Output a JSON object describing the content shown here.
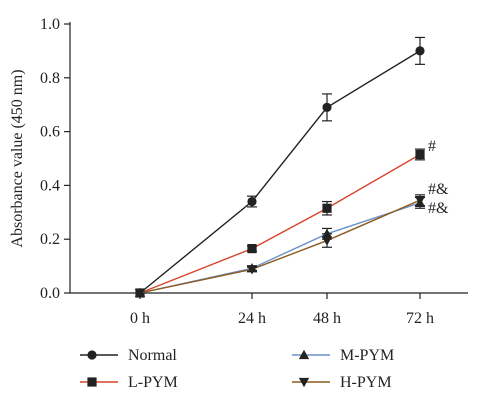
{
  "chart_data": {
    "type": "line",
    "title": "",
    "xlabel": "",
    "ylabel": "Absorbance value (450 nm)",
    "categories": [
      "0 h",
      "24 h",
      "48 h",
      "72 h"
    ],
    "ylim": [
      0,
      1.0
    ],
    "yticks": [
      "0.0",
      "0.2",
      "0.4",
      "0.6",
      "0.8",
      "1.0"
    ],
    "ytick_values": [
      0,
      0.2,
      0.4,
      0.6,
      0.8,
      1.0
    ],
    "grid": false,
    "legend_position": "bottom",
    "series": [
      {
        "name": "Normal",
        "color": "#222222",
        "marker": "circle",
        "values": [
          0.0,
          0.34,
          0.69,
          0.9
        ],
        "errors": [
          0.0,
          0.02,
          0.05,
          0.05
        ]
      },
      {
        "name": "L-PYM",
        "color": "#d9432b",
        "marker": "square",
        "values": [
          0.0,
          0.165,
          0.315,
          0.515
        ],
        "errors": [
          0.0,
          0.01,
          0.025,
          0.02
        ]
      },
      {
        "name": "M-PYM",
        "color": "#6a92c8",
        "marker": "triangle-up",
        "values": [
          0.0,
          0.092,
          0.22,
          0.335
        ],
        "errors": [
          0.0,
          0.008,
          0.02,
          0.02
        ]
      },
      {
        "name": "H-PYM",
        "color": "#8c5a1e",
        "marker": "triangle-down",
        "values": [
          0.0,
          0.088,
          0.195,
          0.345
        ],
        "errors": [
          0.0,
          0.008,
          0.025,
          0.02
        ]
      }
    ],
    "annotations": [
      {
        "text": "#",
        "x": "72 h",
        "y": 0.52
      },
      {
        "text": "#&",
        "x": "72 h",
        "y": 0.36
      },
      {
        "text": "#&",
        "x": "72 h",
        "y": 0.29
      }
    ]
  }
}
